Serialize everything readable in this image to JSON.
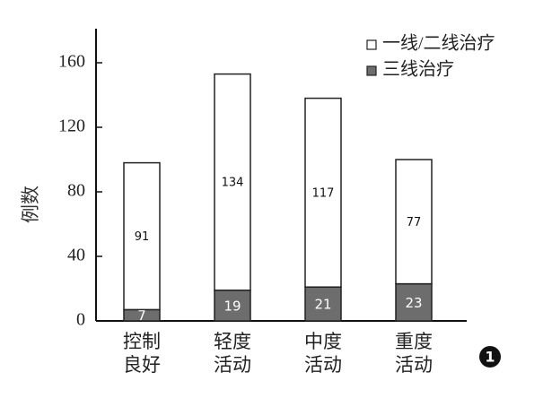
{
  "chart_data": {
    "type": "stacked_bar",
    "y_label": "例数",
    "categories": [
      "控制\n良好",
      "轻度\n活动",
      "中度\n活动",
      "重度\n活动"
    ],
    "series": [
      {
        "name": "一线/二线治疗",
        "color": "#ffffff",
        "values": [
          91,
          134,
          117,
          77
        ]
      },
      {
        "name": "三线治疗",
        "color": "#6d6d6d",
        "values": [
          7,
          19,
          21,
          23
        ]
      }
    ],
    "ylim": [
      0,
      180
    ],
    "yticks": [
      0,
      40,
      80,
      120,
      160
    ],
    "legend": "upper right",
    "annotation": "1"
  }
}
